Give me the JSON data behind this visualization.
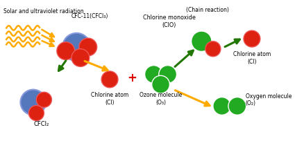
{
  "background_color": "#ffffff",
  "colors": {
    "blue": "#5577bb",
    "red": "#dd2211",
    "green": "#22aa22",
    "orange_arrow": "#ffaa00",
    "green_arrow": "#227700",
    "red_plus": "#dd0000",
    "wave": "#ffaa00"
  },
  "labels": {
    "solar": "Solar and ultraviolet radiation",
    "cfc11": "CFC-11(CFCl₃)",
    "clo_label": "Chlorine monoxide\n(ClO)",
    "chain": "(Chain reaction)",
    "cl_top": "Chlorine atom\n(Cl)",
    "cfcl2": "CFCl₂",
    "cl_bottom": "Chlorine atom\n(Cl)",
    "o3": "Ozone molecule\n(O₃)",
    "o2": "Oxygen molecule\n(O₂)"
  }
}
